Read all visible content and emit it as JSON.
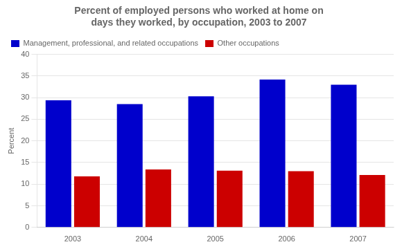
{
  "chart_data": {
    "type": "bar",
    "title": "Percent of employed persons who worked at home on\ndays they worked, by occupation, 2003 to 2007",
    "categories": [
      "2003",
      "2004",
      "2005",
      "2006",
      "2007"
    ],
    "series": [
      {
        "name": "Management, professional, and related occupations",
        "color": "#0000CC",
        "values": [
          29.4,
          28.5,
          30.3,
          34.2,
          33.0
        ]
      },
      {
        "name": "Other occupations",
        "color": "#CC0000",
        "values": [
          11.8,
          13.4,
          13.1,
          13.0,
          12.1
        ]
      }
    ],
    "y_label": "Percent",
    "ylim": [
      0,
      40
    ],
    "yticks": [
      0,
      5,
      10,
      15,
      20,
      25,
      30,
      35,
      40
    ],
    "grid": "y",
    "legend": "upper left"
  }
}
